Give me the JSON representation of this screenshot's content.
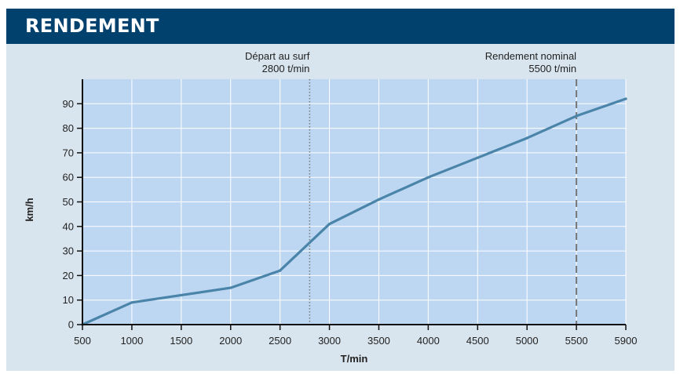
{
  "header": {
    "title": "RENDEMENT"
  },
  "colors": {
    "header_bg": "#00416d",
    "card_bg": "#d9e5ee",
    "plot_bg": "#bdd7f2",
    "grid": "#ffffff",
    "line": "#4a84a9",
    "marker_line": "#777777"
  },
  "chart_data": {
    "type": "line",
    "title": "RENDEMENT",
    "xlabel": "T/min",
    "ylabel": "km/h",
    "xticks": [
      500,
      1000,
      1500,
      2000,
      2500,
      3000,
      3500,
      4000,
      4500,
      5000,
      5500,
      5900
    ],
    "yticks": [
      0,
      10,
      20,
      30,
      40,
      50,
      60,
      70,
      80,
      90
    ],
    "xlim": [
      500,
      5900
    ],
    "ylim": [
      0,
      100
    ],
    "grid": true,
    "series": [
      {
        "x": [
          500,
          1000,
          1500,
          2000,
          2500,
          3000,
          3500,
          4000,
          4500,
          5000,
          5500,
          5900
        ],
        "y": [
          0,
          9,
          12,
          15,
          22,
          41,
          51,
          60,
          68,
          76,
          85,
          92
        ]
      }
    ],
    "annotations": [
      {
        "x": 2800,
        "style": "dotted",
        "label_line1": "Départ au surf",
        "label_line2": "2800 t/min"
      },
      {
        "x": 5500,
        "style": "dashed",
        "label_line1": "Rendement nominal",
        "label_line2": "5500 t/min"
      }
    ]
  }
}
